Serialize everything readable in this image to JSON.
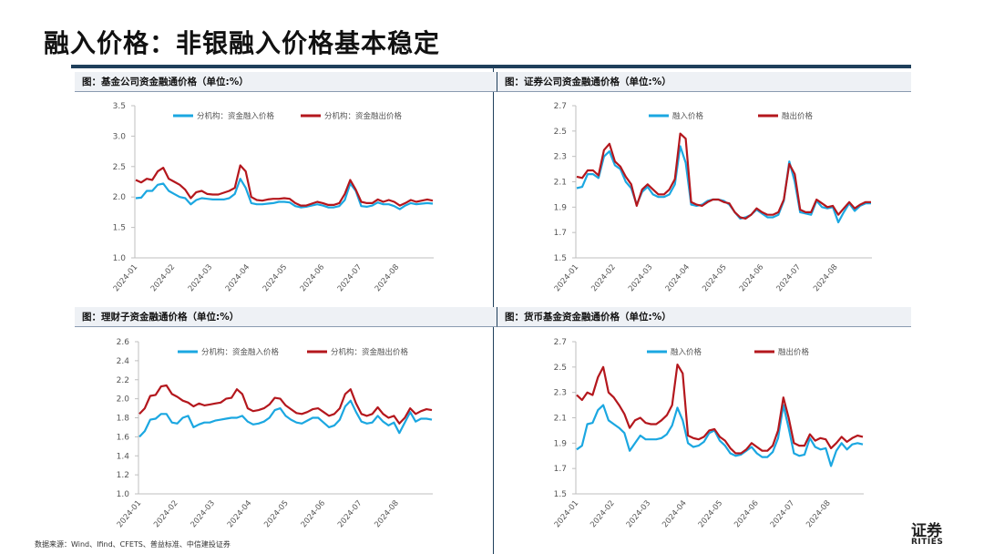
{
  "page": {
    "title": "融入价格：非银融入价格基本稳定",
    "source": "数据来源：Wind、Ifind、CFETS、普益标准、中信建投证券",
    "logo_cn": "证券",
    "logo_en": "RITIES"
  },
  "colors": {
    "inflow": "#1ba7e1",
    "outflow": "#b4171d",
    "rule": "#1f3f5b"
  },
  "chart_data": [
    {
      "type": "line",
      "title": "图：基金公司资金融通价格（单位:%）",
      "ylim": [
        1.0,
        3.5
      ],
      "yticks": [
        "1.0",
        "1.5",
        "2.0",
        "2.5",
        "3.0",
        "3.5"
      ],
      "xticks": [
        "2024-01",
        "2024-02",
        "2024-03",
        "2024-04",
        "2024-05",
        "2024-06",
        "2024-07",
        "2024-08"
      ],
      "series": [
        {
          "name": "分机构：资金融入价格",
          "color": "#1ba7e1",
          "values": [
            1.98,
            1.99,
            2.1,
            2.1,
            2.2,
            2.22,
            2.1,
            2.05,
            2.0,
            1.98,
            1.88,
            1.95,
            1.98,
            1.97,
            1.96,
            1.96,
            1.96,
            1.98,
            2.05,
            2.3,
            2.15,
            1.9,
            1.88,
            1.88,
            1.89,
            1.9,
            1.92,
            1.92,
            1.91,
            1.85,
            1.83,
            1.84,
            1.86,
            1.88,
            1.86,
            1.83,
            1.83,
            1.85,
            1.95,
            2.22,
            2.1,
            1.85,
            1.84,
            1.86,
            1.91,
            1.88,
            1.88,
            1.85,
            1.8,
            1.86,
            1.9,
            1.88,
            1.89,
            1.9,
            1.89
          ]
        },
        {
          "name": "分机构：资金融出价格",
          "color": "#b4171d",
          "values": [
            2.28,
            2.24,
            2.3,
            2.28,
            2.42,
            2.48,
            2.3,
            2.25,
            2.2,
            2.12,
            1.98,
            2.08,
            2.1,
            2.05,
            2.04,
            2.04,
            2.07,
            2.1,
            2.15,
            2.52,
            2.42,
            2.0,
            1.95,
            1.94,
            1.96,
            1.97,
            1.97,
            1.98,
            1.97,
            1.9,
            1.86,
            1.86,
            1.89,
            1.92,
            1.9,
            1.87,
            1.87,
            1.9,
            2.05,
            2.28,
            2.12,
            1.92,
            1.9,
            1.9,
            1.96,
            1.92,
            1.95,
            1.92,
            1.86,
            1.9,
            1.95,
            1.92,
            1.94,
            1.96,
            1.94
          ]
        }
      ]
    },
    {
      "type": "line",
      "title": "图：证券公司资金融通价格（单位:%）",
      "ylim": [
        1.5,
        2.7
      ],
      "yticks": [
        "1.5",
        "1.7",
        "1.9",
        "2.1",
        "2.3",
        "2.5",
        "2.7"
      ],
      "xticks": [
        "2024-01",
        "2024-02",
        "2024-03",
        "2024-04",
        "2024-05",
        "2024-06",
        "2024-07",
        "2024-08"
      ],
      "series": [
        {
          "name": "融入价格",
          "color": "#1ba7e1",
          "values": [
            2.05,
            2.06,
            2.16,
            2.16,
            2.13,
            2.3,
            2.34,
            2.23,
            2.2,
            2.1,
            2.05,
            1.92,
            2.02,
            2.06,
            2.0,
            1.98,
            1.98,
            2.0,
            2.08,
            2.38,
            2.25,
            1.92,
            1.91,
            1.92,
            1.95,
            1.96,
            1.96,
            1.95,
            1.92,
            1.86,
            1.81,
            1.82,
            1.84,
            1.88,
            1.85,
            1.82,
            1.82,
            1.84,
            1.95,
            2.26,
            2.1,
            1.86,
            1.85,
            1.84,
            1.95,
            1.9,
            1.89,
            1.9,
            1.78,
            1.86,
            1.93,
            1.87,
            1.91,
            1.93,
            1.93
          ]
        },
        {
          "name": "融出价格",
          "color": "#b4171d",
          "values": [
            2.14,
            2.13,
            2.19,
            2.19,
            2.15,
            2.35,
            2.4,
            2.26,
            2.22,
            2.14,
            2.08,
            1.91,
            2.04,
            2.08,
            2.04,
            2.0,
            2.0,
            2.04,
            2.12,
            2.48,
            2.44,
            1.94,
            1.92,
            1.91,
            1.94,
            1.96,
            1.96,
            1.94,
            1.93,
            1.86,
            1.82,
            1.81,
            1.84,
            1.89,
            1.86,
            1.84,
            1.84,
            1.86,
            1.96,
            2.24,
            2.16,
            1.88,
            1.86,
            1.86,
            1.96,
            1.93,
            1.9,
            1.91,
            1.84,
            1.89,
            1.94,
            1.89,
            1.92,
            1.94,
            1.94
          ]
        }
      ]
    },
    {
      "type": "line",
      "title": "图：理财子资金融通价格（单位:%）",
      "ylim": [
        1.0,
        2.6
      ],
      "yticks": [
        "1.0",
        "1.2",
        "1.4",
        "1.6",
        "1.8",
        "2.0",
        "2.2",
        "2.4",
        "2.6"
      ],
      "xticks": [
        "2024-01",
        "2024-02",
        "2024-03",
        "2024-04",
        "2024-05",
        "2024-06",
        "2024-07",
        "2024-08"
      ],
      "series": [
        {
          "name": "分机构：资金融入价格",
          "color": "#1ba7e1",
          "values": [
            1.6,
            1.66,
            1.78,
            1.79,
            1.84,
            1.84,
            1.75,
            1.74,
            1.8,
            1.82,
            1.7,
            1.73,
            1.75,
            1.75,
            1.77,
            1.78,
            1.79,
            1.8,
            1.8,
            1.82,
            1.76,
            1.73,
            1.74,
            1.76,
            1.8,
            1.88,
            1.9,
            1.82,
            1.78,
            1.75,
            1.74,
            1.77,
            1.8,
            1.8,
            1.75,
            1.7,
            1.72,
            1.78,
            1.92,
            1.98,
            1.86,
            1.76,
            1.74,
            1.75,
            1.82,
            1.76,
            1.72,
            1.75,
            1.64,
            1.75,
            1.86,
            1.76,
            1.79,
            1.79,
            1.78
          ]
        },
        {
          "name": "分机构：资金融出价格",
          "color": "#b4171d",
          "values": [
            1.84,
            1.9,
            2.03,
            2.04,
            2.13,
            2.14,
            2.05,
            2.02,
            1.98,
            1.96,
            1.92,
            1.95,
            1.93,
            1.94,
            1.95,
            1.96,
            2.0,
            2.01,
            2.1,
            2.05,
            1.9,
            1.87,
            1.88,
            1.9,
            1.94,
            2.01,
            2.0,
            1.93,
            1.89,
            1.85,
            1.84,
            1.86,
            1.89,
            1.9,
            1.86,
            1.82,
            1.84,
            1.9,
            2.05,
            2.1,
            1.95,
            1.84,
            1.82,
            1.84,
            1.91,
            1.84,
            1.8,
            1.82,
            1.74,
            1.8,
            1.9,
            1.84,
            1.87,
            1.89,
            1.88
          ]
        }
      ]
    },
    {
      "type": "line",
      "title": "图：货币基金资金融通价格（单位:%）",
      "ylim": [
        1.5,
        2.7
      ],
      "yticks": [
        "1.5",
        "1.7",
        "1.9",
        "2.1",
        "2.3",
        "2.5",
        "2.7"
      ],
      "xticks": [
        "2024-01",
        "2024-02",
        "2024-03",
        "2024-04",
        "2024-05",
        "2024-06",
        "2024-07",
        "2024-08"
      ],
      "series": [
        {
          "name": "融入价格",
          "color": "#1ba7e1",
          "values": [
            1.85,
            1.88,
            2.05,
            2.06,
            2.16,
            2.2,
            2.08,
            2.05,
            2.02,
            1.98,
            1.84,
            1.9,
            1.96,
            1.93,
            1.93,
            1.93,
            1.94,
            1.97,
            2.04,
            2.18,
            2.08,
            1.9,
            1.87,
            1.88,
            1.91,
            1.98,
            2.0,
            1.92,
            1.88,
            1.82,
            1.8,
            1.81,
            1.84,
            1.87,
            1.82,
            1.79,
            1.79,
            1.83,
            1.94,
            2.2,
            2.02,
            1.82,
            1.8,
            1.81,
            1.94,
            1.87,
            1.85,
            1.86,
            1.72,
            1.84,
            1.9,
            1.85,
            1.89,
            1.9,
            1.89
          ]
        },
        {
          "name": "融出价格",
          "color": "#b4171d",
          "values": [
            2.28,
            2.24,
            2.3,
            2.28,
            2.42,
            2.5,
            2.3,
            2.26,
            2.2,
            2.13,
            2.02,
            2.08,
            2.1,
            2.06,
            2.05,
            2.05,
            2.08,
            2.12,
            2.2,
            2.52,
            2.45,
            1.96,
            1.94,
            1.93,
            1.95,
            2.0,
            2.01,
            1.95,
            1.92,
            1.86,
            1.82,
            1.82,
            1.85,
            1.9,
            1.87,
            1.84,
            1.84,
            1.88,
            2.0,
            2.26,
            2.1,
            1.9,
            1.88,
            1.88,
            1.97,
            1.92,
            1.94,
            1.93,
            1.86,
            1.9,
            1.95,
            1.91,
            1.94,
            1.96,
            1.95
          ]
        }
      ]
    }
  ]
}
